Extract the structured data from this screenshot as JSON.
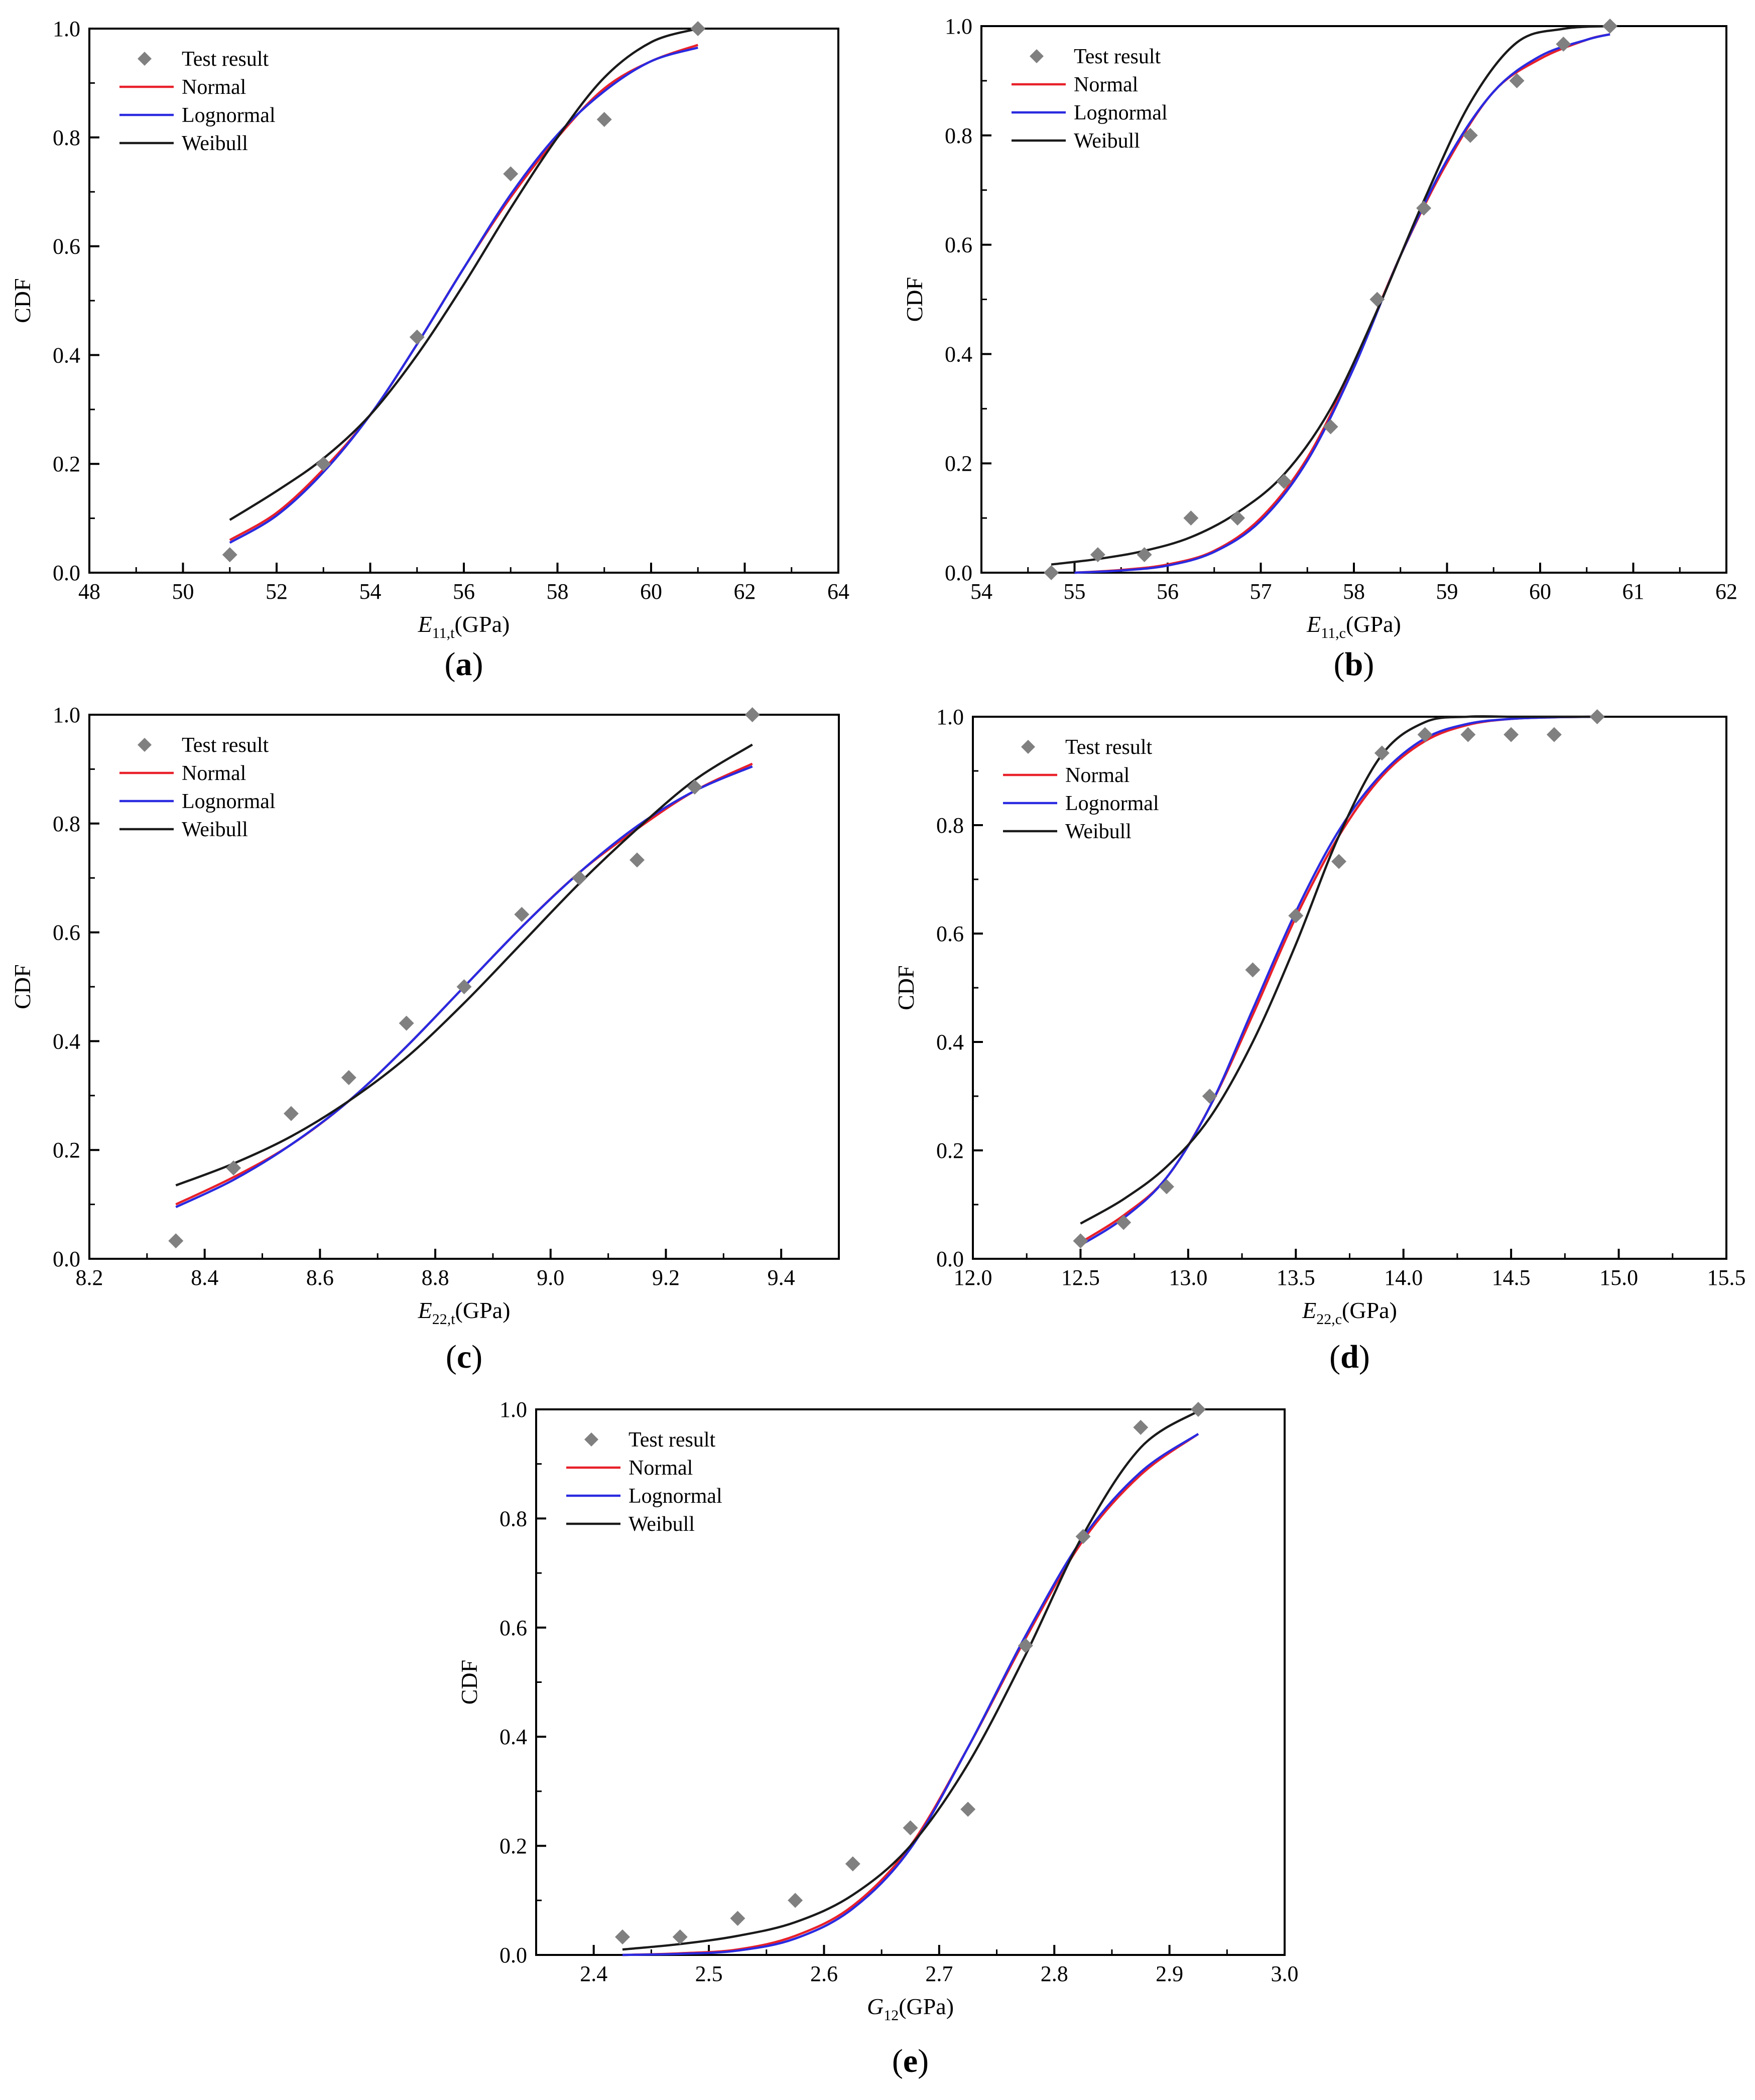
{
  "legend_marker_shape": "diamond",
  "chart_data": [
    {
      "id": "a",
      "type": "line",
      "panel_label": "a",
      "xlabel_main": "E",
      "xlabel_sub": "11,t",
      "xlabel_unit": "(GPa)",
      "ylabel": "CDF",
      "xlim": [
        48,
        64
      ],
      "ylim": [
        0,
        1
      ],
      "xticks": [
        48,
        50,
        52,
        54,
        56,
        58,
        60,
        62,
        64
      ],
      "xtick_labels": [
        "48",
        "50",
        "52",
        "54",
        "56",
        "58",
        "60",
        "62",
        "64"
      ],
      "yticks": [
        0,
        0.2,
        0.4,
        0.6,
        0.8,
        1.0
      ],
      "ytick_labels": [
        "0.0",
        "0.2",
        "0.4",
        "0.6",
        "0.8",
        "1.0"
      ],
      "legend": [
        "Test result",
        "Normal",
        "Lognormal",
        "Weibull"
      ],
      "scatter": {
        "name": "Test result",
        "color": "#808080",
        "x": [
          51,
          53,
          55,
          57,
          59,
          61
        ],
        "y": [
          0.033,
          0.2,
          0.433,
          0.733,
          0.833,
          1.0
        ]
      },
      "series": [
        {
          "name": "Normal",
          "color": "#e8202a",
          "x": [
            51,
            52,
            53,
            54,
            55,
            56,
            57,
            58,
            59,
            60,
            61
          ],
          "y": [
            0.06,
            0.11,
            0.19,
            0.29,
            0.42,
            0.56,
            0.69,
            0.8,
            0.89,
            0.94,
            0.97
          ]
        },
        {
          "name": "Lognormal",
          "color": "#2a2ae0",
          "x": [
            51,
            52,
            53,
            54,
            55,
            56,
            57,
            58,
            59,
            60,
            61
          ],
          "y": [
            0.055,
            0.105,
            0.185,
            0.29,
            0.42,
            0.56,
            0.695,
            0.805,
            0.885,
            0.94,
            0.965
          ]
        },
        {
          "name": "Weibull",
          "color": "#1a1a1a",
          "x": [
            51,
            52,
            53,
            54,
            55,
            56,
            57,
            58,
            59,
            60,
            61
          ],
          "y": [
            0.097,
            0.15,
            0.21,
            0.29,
            0.4,
            0.53,
            0.67,
            0.8,
            0.91,
            0.975,
            1.0
          ]
        }
      ]
    },
    {
      "id": "b",
      "type": "line",
      "panel_label": "b",
      "xlabel_main": "E",
      "xlabel_sub": "11,c",
      "xlabel_unit": "(GPa)",
      "ylabel": "CDF",
      "xlim": [
        54,
        62
      ],
      "ylim": [
        0,
        1
      ],
      "xticks": [
        54,
        55,
        56,
        57,
        58,
        59,
        60,
        61,
        62
      ],
      "xtick_labels": [
        "54",
        "55",
        "56",
        "57",
        "58",
        "59",
        "60",
        "61",
        "62"
      ],
      "yticks": [
        0,
        0.2,
        0.4,
        0.6,
        0.8,
        1.0
      ],
      "ytick_labels": [
        "0.0",
        "0.2",
        "0.4",
        "0.6",
        "0.8",
        "1.0"
      ],
      "legend": [
        "Test result",
        "Normal",
        "Lognormal",
        "Weibull"
      ],
      "scatter": {
        "name": "Test result",
        "color": "#808080",
        "x": [
          54.75,
          55.25,
          55.75,
          56.25,
          56.75,
          57.25,
          57.75,
          58.25,
          58.75,
          59.25,
          59.75,
          60.25,
          60.75
        ],
        "y": [
          0.0,
          0.033,
          0.033,
          0.1,
          0.1,
          0.167,
          0.267,
          0.5,
          0.667,
          0.8,
          0.9,
          0.967,
          1.0
        ]
      },
      "series": [
        {
          "name": "Normal",
          "color": "#e8202a",
          "x": [
            55.0,
            55.5,
            56.0,
            56.5,
            57.0,
            57.5,
            58.0,
            58.5,
            59.0,
            59.5,
            60.0,
            60.5,
            60.75
          ],
          "y": [
            0.0,
            0.005,
            0.015,
            0.04,
            0.1,
            0.21,
            0.38,
            0.58,
            0.75,
            0.88,
            0.94,
            0.975,
            0.985
          ]
        },
        {
          "name": "Lognormal",
          "color": "#2a2ae0",
          "x": [
            55.0,
            55.5,
            56.0,
            56.5,
            57.0,
            57.5,
            58.0,
            58.5,
            59.0,
            59.5,
            60.0,
            60.5,
            60.75
          ],
          "y": [
            0.0,
            0.004,
            0.013,
            0.038,
            0.095,
            0.205,
            0.375,
            0.58,
            0.755,
            0.88,
            0.945,
            0.975,
            0.985
          ]
        },
        {
          "name": "Weibull",
          "color": "#1a1a1a",
          "x": [
            54.75,
            55.25,
            55.75,
            56.25,
            56.75,
            57.25,
            57.75,
            58.25,
            58.75,
            59.25,
            59.75,
            60.25,
            60.75
          ],
          "y": [
            0.015,
            0.025,
            0.04,
            0.065,
            0.11,
            0.18,
            0.3,
            0.48,
            0.68,
            0.86,
            0.97,
            0.995,
            1.0
          ]
        }
      ]
    },
    {
      "id": "c",
      "type": "line",
      "panel_label": "c",
      "xlabel_main": "E",
      "xlabel_sub": "22,t",
      "xlabel_unit": "(GPa)",
      "ylabel": "CDF",
      "xlim": [
        8.2,
        9.5
      ],
      "ylim": [
        0,
        1
      ],
      "xticks": [
        8.2,
        8.4,
        8.6,
        8.8,
        9.0,
        9.2,
        9.4
      ],
      "xtick_labels": [
        "8.2",
        "8.4",
        "8.6",
        "8.8",
        "9.0",
        "9.2",
        "9.4"
      ],
      "yticks": [
        0,
        0.2,
        0.4,
        0.6,
        0.8,
        1.0
      ],
      "ytick_labels": [
        "0.0",
        "0.2",
        "0.4",
        "0.6",
        "0.8",
        "1.0"
      ],
      "legend": [
        "Test result",
        "Normal",
        "Lognormal",
        "Weibull"
      ],
      "scatter": {
        "name": "Test result",
        "color": "#808080",
        "x": [
          8.35,
          8.45,
          8.55,
          8.65,
          8.75,
          8.85,
          8.95,
          9.05,
          9.15,
          9.25,
          9.35
        ],
        "y": [
          0.033,
          0.167,
          0.267,
          0.333,
          0.433,
          0.5,
          0.633,
          0.7,
          0.733,
          0.867,
          1.0
        ]
      },
      "series": [
        {
          "name": "Normal",
          "color": "#e8202a",
          "x": [
            8.35,
            8.45,
            8.55,
            8.65,
            8.75,
            8.85,
            8.95,
            9.05,
            9.15,
            9.25,
            9.35
          ],
          "y": [
            0.1,
            0.15,
            0.21,
            0.29,
            0.39,
            0.5,
            0.61,
            0.71,
            0.79,
            0.86,
            0.91
          ]
        },
        {
          "name": "Lognormal",
          "color": "#2a2ae0",
          "x": [
            8.35,
            8.45,
            8.55,
            8.65,
            8.75,
            8.85,
            8.95,
            9.05,
            9.15,
            9.25,
            9.35
          ],
          "y": [
            0.095,
            0.145,
            0.21,
            0.29,
            0.39,
            0.5,
            0.61,
            0.71,
            0.795,
            0.86,
            0.905
          ]
        },
        {
          "name": "Weibull",
          "color": "#1a1a1a",
          "x": [
            8.35,
            8.45,
            8.55,
            8.65,
            8.75,
            8.85,
            8.95,
            9.05,
            9.15,
            9.25,
            9.35
          ],
          "y": [
            0.135,
            0.175,
            0.225,
            0.29,
            0.37,
            0.47,
            0.58,
            0.69,
            0.79,
            0.88,
            0.945
          ]
        }
      ]
    },
    {
      "id": "d",
      "type": "line",
      "panel_label": "d",
      "xlabel_main": "E",
      "xlabel_sub": "22,c",
      "xlabel_unit": "(GPa)",
      "ylabel": "CDF",
      "xlim": [
        12.0,
        15.5
      ],
      "ylim": [
        0,
        1
      ],
      "xticks": [
        12.0,
        12.5,
        13.0,
        13.5,
        14.0,
        14.5,
        15.0,
        15.5
      ],
      "xtick_labels": [
        "12.0",
        "12.5",
        "13.0",
        "13.5",
        "14.0",
        "14.5",
        "15.0",
        "15.5"
      ],
      "yticks": [
        0,
        0.2,
        0.4,
        0.6,
        0.8,
        1.0
      ],
      "ytick_labels": [
        "0.0",
        "0.2",
        "0.4",
        "0.6",
        "0.8",
        "1.0"
      ],
      "legend": [
        "Test result",
        "Normal",
        "Lognormal",
        "Weibull"
      ],
      "scatter": {
        "name": "Test result",
        "color": "#808080",
        "x": [
          12.5,
          12.7,
          12.9,
          13.1,
          13.3,
          13.5,
          13.7,
          13.9,
          14.1,
          14.3,
          14.5,
          14.7,
          14.9
        ],
        "y": [
          0.033,
          0.067,
          0.133,
          0.3,
          0.533,
          0.633,
          0.733,
          0.933,
          0.967,
          0.967,
          0.967,
          0.967,
          1.0
        ]
      },
      "series": [
        {
          "name": "Normal",
          "color": "#e8202a",
          "x": [
            12.5,
            12.7,
            12.9,
            13.1,
            13.3,
            13.5,
            13.7,
            13.9,
            14.1,
            14.3,
            14.5,
            14.7,
            14.9
          ],
          "y": [
            0.03,
            0.08,
            0.15,
            0.28,
            0.45,
            0.63,
            0.78,
            0.89,
            0.955,
            0.985,
            0.996,
            0.999,
            1.0
          ]
        },
        {
          "name": "Lognormal",
          "color": "#2a2ae0",
          "x": [
            12.5,
            12.7,
            12.9,
            13.1,
            13.3,
            13.5,
            13.7,
            13.9,
            14.1,
            14.3,
            14.5,
            14.7,
            14.9
          ],
          "y": [
            0.025,
            0.075,
            0.15,
            0.28,
            0.46,
            0.64,
            0.79,
            0.895,
            0.96,
            0.987,
            0.996,
            0.999,
            1.0
          ]
        },
        {
          "name": "Weibull",
          "color": "#1a1a1a",
          "x": [
            12.5,
            12.7,
            12.9,
            13.1,
            13.3,
            13.5,
            13.7,
            13.9,
            14.1,
            14.3,
            14.5,
            14.7,
            14.9
          ],
          "y": [
            0.065,
            0.11,
            0.17,
            0.26,
            0.4,
            0.58,
            0.78,
            0.93,
            0.99,
            1.0,
            1.0,
            1.0,
            1.0
          ]
        }
      ]
    },
    {
      "id": "e",
      "type": "line",
      "panel_label": "e",
      "xlabel_main": "G",
      "xlabel_sub": "12",
      "xlabel_unit": "(GPa)",
      "ylabel": "CDF",
      "xlim": [
        2.35,
        3.0
      ],
      "ylim": [
        0,
        1
      ],
      "xticks": [
        2.4,
        2.5,
        2.6,
        2.7,
        2.8,
        2.9,
        3.0
      ],
      "xtick_labels": [
        "2.4",
        "2.5",
        "2.6",
        "2.7",
        "2.8",
        "2.9",
        "3.0"
      ],
      "yticks": [
        0,
        0.2,
        0.4,
        0.6,
        0.8,
        1.0
      ],
      "ytick_labels": [
        "0.0",
        "0.2",
        "0.4",
        "0.6",
        "0.8",
        "1.0"
      ],
      "legend": [
        "Test result",
        "Normal",
        "Lognormal",
        "Weibull"
      ],
      "scatter": {
        "name": "Test result",
        "color": "#808080",
        "x": [
          2.425,
          2.475,
          2.525,
          2.575,
          2.625,
          2.675,
          2.725,
          2.775,
          2.825,
          2.875,
          2.925
        ],
        "y": [
          0.033,
          0.033,
          0.067,
          0.1,
          0.167,
          0.233,
          0.267,
          0.567,
          0.767,
          0.967,
          1.0
        ]
      },
      "series": [
        {
          "name": "Normal",
          "color": "#e8202a",
          "x": [
            2.425,
            2.475,
            2.525,
            2.575,
            2.625,
            2.675,
            2.725,
            2.775,
            2.825,
            2.875,
            2.925
          ],
          "y": [
            0.0,
            0.003,
            0.01,
            0.035,
            0.09,
            0.2,
            0.38,
            0.58,
            0.76,
            0.88,
            0.955
          ]
        },
        {
          "name": "Lognormal",
          "color": "#2a2ae0",
          "x": [
            2.425,
            2.475,
            2.525,
            2.575,
            2.625,
            2.675,
            2.725,
            2.775,
            2.825,
            2.875,
            2.925
          ],
          "y": [
            0.0,
            0.002,
            0.008,
            0.03,
            0.085,
            0.195,
            0.38,
            0.585,
            0.765,
            0.885,
            0.955
          ]
        },
        {
          "name": "Weibull",
          "color": "#1a1a1a",
          "x": [
            2.425,
            2.475,
            2.525,
            2.575,
            2.625,
            2.675,
            2.725,
            2.775,
            2.825,
            2.875,
            2.925
          ],
          "y": [
            0.01,
            0.02,
            0.035,
            0.06,
            0.11,
            0.2,
            0.35,
            0.55,
            0.77,
            0.93,
            0.997
          ]
        }
      ]
    }
  ]
}
